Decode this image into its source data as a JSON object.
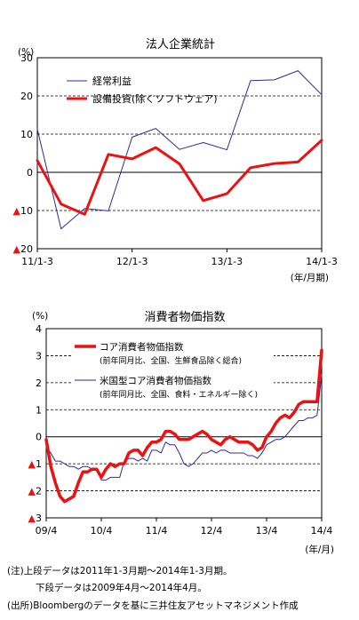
{
  "chart_data": [
    {
      "type": "line",
      "title": "法人企業統計",
      "yunit": "(%)",
      "xunit": "(年/月期)",
      "ylim": [
        -20,
        30
      ],
      "yticks": [
        30,
        20,
        10,
        0,
        -10,
        -20
      ],
      "ytick_labels": [
        "30",
        "20",
        "10",
        "0",
        "▲10",
        "▲20"
      ],
      "x_tick_labels": [
        "11/1-3",
        "12/1-3",
        "13/1-3",
        "14/1-3"
      ],
      "x_tick_index": [
        0,
        4,
        8,
        12
      ],
      "grid": "y-dashed",
      "legend_position": "top-left",
      "series": [
        {
          "name": "経常利益",
          "color": "#2a2aa8",
          "width": 1,
          "values": [
            11.3,
            -14.8,
            -9.5,
            -10.1,
            9.2,
            11.5,
            6.0,
            7.8,
            5.9,
            24.0,
            24.2,
            26.6,
            20.3
          ]
        },
        {
          "name": "設備投資(除くソフトウェア)",
          "color": "#ee1111",
          "width": 3,
          "values": [
            3.1,
            -8.3,
            -11.0,
            4.7,
            3.5,
            6.5,
            2.2,
            -7.4,
            -5.6,
            1.2,
            2.3,
            2.7,
            8.4
          ]
        }
      ]
    },
    {
      "type": "line",
      "title": "消費者物価指数",
      "yunit": "(%)",
      "xunit": "(年/月)",
      "ylim": [
        -3,
        4
      ],
      "yticks": [
        4,
        3,
        2,
        1,
        0,
        -1,
        -2,
        -3
      ],
      "ytick_labels": [
        "4",
        "3",
        "2",
        "1",
        "0",
        "▲1",
        "▲2",
        "▲3"
      ],
      "x_tick_labels": [
        "09/4",
        "10/4",
        "11/4",
        "12/4",
        "13/4",
        "14/4"
      ],
      "x_tick_index": [
        0,
        12,
        24,
        36,
        48,
        60
      ],
      "grid": "y-dashed",
      "legend_position": "top-left",
      "series": [
        {
          "name": "コア消費者物価指数",
          "name_sub": "(前年同月比、全国、生鮮食品除く総合)",
          "color": "#ee1111",
          "width": 3.5,
          "values": [
            -0.1,
            -1.1,
            -1.7,
            -2.2,
            -2.4,
            -2.3,
            -2.2,
            -1.7,
            -1.3,
            -1.3,
            -1.2,
            -1.2,
            -1.5,
            -1.2,
            -1.0,
            -1.1,
            -1.0,
            -1.0,
            -0.6,
            -0.5,
            -0.5,
            -0.7,
            -0.4,
            -0.2,
            -0.2,
            -0.1,
            0.2,
            0.2,
            0.1,
            -0.1,
            -0.1,
            -0.1,
            0.0,
            0.1,
            0.2,
            0.1,
            -0.1,
            -0.2,
            -0.3,
            -0.1,
            0.0,
            -0.1,
            -0.2,
            -0.2,
            -0.2,
            -0.3,
            -0.5,
            -0.4,
            0.0,
            0.2,
            0.5,
            0.7,
            0.8,
            0.7,
            0.9,
            1.2,
            1.3,
            1.3,
            1.3,
            1.3,
            3.2
          ]
        },
        {
          "name": "米国型コア消費者物価指数",
          "name_sub": "(前年同月比、全国、食料・エネルギー除く)",
          "color": "#2a2aa8",
          "width": 1,
          "values": [
            -0.4,
            -0.6,
            -0.9,
            -0.9,
            -1.0,
            -1.1,
            -1.1,
            -1.2,
            -1.1,
            -1.1,
            -1.2,
            -1.2,
            -1.6,
            -1.6,
            -1.5,
            -1.5,
            -1.5,
            -0.9,
            -0.8,
            -0.8,
            -0.9,
            -0.8,
            -0.9,
            -0.5,
            -0.5,
            -0.6,
            -0.2,
            -0.3,
            -0.3,
            -0.6,
            -1.0,
            -1.1,
            -1.0,
            -0.8,
            -0.6,
            -0.6,
            -0.5,
            -0.6,
            -0.5,
            -0.5,
            -0.6,
            -0.6,
            -0.6,
            -0.6,
            -0.7,
            -0.7,
            -0.8,
            -0.6,
            -0.3,
            -0.2,
            -0.1,
            -0.1,
            0.0,
            0.2,
            0.4,
            0.6,
            0.6,
            0.7,
            0.7,
            0.8,
            2.3
          ]
        }
      ]
    }
  ],
  "notes": {
    "note1_label": "(注)",
    "note1_line1": "上段データは2011年1-3月期～2014年1-3月期。",
    "note1_line2": "下段データは2009年4月～2014年4月。",
    "source": "(出所)Bloombergのデータを基に三井住友アセットマネジメント作成"
  }
}
